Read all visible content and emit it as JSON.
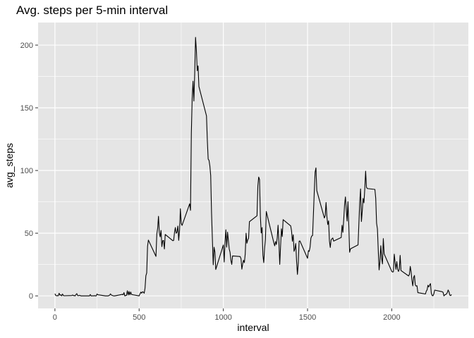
{
  "chart_data": {
    "type": "line",
    "title": "Avg. steps per 5-min interval",
    "xlabel": "interval",
    "ylabel": "avg_steps",
    "xlim": [
      -100,
      2455
    ],
    "ylim": [
      -10,
      218
    ],
    "x_ticks": [
      0,
      500,
      1000,
      1500,
      2000
    ],
    "y_ticks": [
      0,
      50,
      100,
      150,
      200
    ],
    "grid": true,
    "colors": {
      "panel": "#e5e5e5",
      "grid_major": "#ffffff",
      "line": "#000000"
    },
    "series": [
      {
        "name": "avg_steps",
        "points": [
          [
            0,
            1.7
          ],
          [
            5,
            0.3
          ],
          [
            10,
            0.1
          ],
          [
            15,
            0.2
          ],
          [
            20,
            0.1
          ],
          [
            25,
            2.1
          ],
          [
            30,
            0.5
          ],
          [
            35,
            0.9
          ],
          [
            40,
            0
          ],
          [
            45,
            1.5
          ],
          [
            50,
            0.3
          ],
          [
            55,
            0.1
          ],
          [
            100,
            0.3
          ],
          [
            105,
            0.7
          ],
          [
            110,
            0.2
          ],
          [
            115,
            0.3
          ],
          [
            120,
            0
          ],
          [
            125,
            1.1
          ],
          [
            130,
            1.8
          ],
          [
            135,
            0.2
          ],
          [
            140,
            0.2
          ],
          [
            145,
            0.4
          ],
          [
            150,
            0.3
          ],
          [
            155,
            0
          ],
          [
            200,
            0
          ],
          [
            205,
            0
          ],
          [
            210,
            1.1
          ],
          [
            215,
            0
          ],
          [
            220,
            0
          ],
          [
            225,
            0.1
          ],
          [
            230,
            0
          ],
          [
            235,
            0.2
          ],
          [
            240,
            0
          ],
          [
            245,
            0
          ],
          [
            250,
            1.5
          ],
          [
            255,
            0.9
          ],
          [
            300,
            0
          ],
          [
            305,
            0
          ],
          [
            310,
            0
          ],
          [
            315,
            0
          ],
          [
            320,
            0.2
          ],
          [
            325,
            0.6
          ],
          [
            330,
            1.6
          ],
          [
            335,
            0.6
          ],
          [
            340,
            0.5
          ],
          [
            345,
            0.1
          ],
          [
            350,
            0
          ],
          [
            355,
            0
          ],
          [
            400,
            1.2
          ],
          [
            405,
            0.9
          ],
          [
            410,
            2.6
          ],
          [
            415,
            0
          ],
          [
            420,
            0.3
          ],
          [
            425,
            0.4
          ],
          [
            430,
            4.1
          ],
          [
            435,
            0.7
          ],
          [
            440,
            3.5
          ],
          [
            445,
            0.8
          ],
          [
            450,
            3.1
          ],
          [
            455,
            1.1
          ],
          [
            500,
            0
          ],
          [
            505,
            1.6
          ],
          [
            510,
            3
          ],
          [
            515,
            2.2
          ],
          [
            520,
            3.3
          ],
          [
            525,
            3
          ],
          [
            530,
            2.1
          ],
          [
            535,
            6.1
          ],
          [
            540,
            16
          ],
          [
            545,
            18.3
          ],
          [
            550,
            39.5
          ],
          [
            555,
            44.5
          ],
          [
            600,
            31.5
          ],
          [
            605,
            49.3
          ],
          [
            610,
            53.8
          ],
          [
            615,
            63.5
          ],
          [
            620,
            50
          ],
          [
            625,
            47.1
          ],
          [
            630,
            52.2
          ],
          [
            635,
            39.3
          ],
          [
            640,
            44
          ],
          [
            645,
            44.2
          ],
          [
            650,
            37.4
          ],
          [
            655,
            49
          ],
          [
            700,
            44
          ],
          [
            705,
            44.2
          ],
          [
            710,
            50.5
          ],
          [
            715,
            54.5
          ],
          [
            720,
            49.9
          ],
          [
            725,
            50.8
          ],
          [
            730,
            55.7
          ],
          [
            735,
            44.3
          ],
          [
            740,
            52.3
          ],
          [
            745,
            69.5
          ],
          [
            750,
            57.8
          ],
          [
            755,
            56.2
          ],
          [
            800,
            73.4
          ],
          [
            805,
            68.2
          ],
          [
            810,
            129.4
          ],
          [
            815,
            157.5
          ],
          [
            820,
            171.2
          ],
          [
            825,
            155.4
          ],
          [
            830,
            177.3
          ],
          [
            835,
            206.2
          ],
          [
            840,
            195.9
          ],
          [
            845,
            179.6
          ],
          [
            850,
            183.4
          ],
          [
            855,
            167
          ],
          [
            900,
            143.5
          ],
          [
            905,
            124
          ],
          [
            910,
            109.1
          ],
          [
            915,
            108.1
          ],
          [
            920,
            103.7
          ],
          [
            925,
            95.97
          ],
          [
            930,
            66.2
          ],
          [
            935,
            45.2
          ],
          [
            940,
            24.8
          ],
          [
            945,
            38.8
          ],
          [
            950,
            34.98
          ],
          [
            955,
            21.06
          ],
          [
            1000,
            40.6
          ],
          [
            1005,
            26.98
          ],
          [
            1010,
            42.4
          ],
          [
            1015,
            52.7
          ],
          [
            1020,
            38.9
          ],
          [
            1025,
            50.8
          ],
          [
            1030,
            44.3
          ],
          [
            1035,
            37.4
          ],
          [
            1040,
            34.7
          ],
          [
            1045,
            28.3
          ],
          [
            1050,
            25.1
          ],
          [
            1055,
            31.9
          ],
          [
            1100,
            31.4
          ],
          [
            1105,
            29.7
          ],
          [
            1110,
            21.3
          ],
          [
            1115,
            25.5
          ],
          [
            1120,
            28.4
          ],
          [
            1125,
            26.5
          ],
          [
            1130,
            33.4
          ],
          [
            1135,
            49.98
          ],
          [
            1140,
            42
          ],
          [
            1145,
            44.6
          ],
          [
            1150,
            46
          ],
          [
            1155,
            59.2
          ],
          [
            1200,
            63.9
          ],
          [
            1205,
            87.7
          ],
          [
            1210,
            94.8
          ],
          [
            1215,
            92.8
          ],
          [
            1220,
            63.4
          ],
          [
            1225,
            50.2
          ],
          [
            1230,
            54.5
          ],
          [
            1235,
            32.4
          ],
          [
            1240,
            26.5
          ],
          [
            1245,
            37.7
          ],
          [
            1250,
            45.1
          ],
          [
            1255,
            67.3
          ],
          [
            1300,
            42.3
          ],
          [
            1305,
            39.9
          ],
          [
            1310,
            43.3
          ],
          [
            1315,
            40.98
          ],
          [
            1320,
            46.2
          ],
          [
            1325,
            56.4
          ],
          [
            1330,
            42.8
          ],
          [
            1335,
            25.1
          ],
          [
            1340,
            39.97
          ],
          [
            1345,
            53.5
          ],
          [
            1350,
            47.3
          ],
          [
            1355,
            60.8
          ],
          [
            1400,
            55.8
          ],
          [
            1405,
            51.96
          ],
          [
            1410,
            43.6
          ],
          [
            1415,
            48.7
          ],
          [
            1420,
            35.5
          ],
          [
            1425,
            37.5
          ],
          [
            1430,
            41.8
          ],
          [
            1435,
            27.5
          ],
          [
            1440,
            17.1
          ],
          [
            1445,
            26.1
          ],
          [
            1450,
            43.6
          ],
          [
            1455,
            43.8
          ],
          [
            1500,
            30
          ],
          [
            1505,
            36.1
          ],
          [
            1510,
            35.5
          ],
          [
            1515,
            38.8
          ],
          [
            1520,
            45.96
          ],
          [
            1525,
            47.8
          ],
          [
            1530,
            48.1
          ],
          [
            1535,
            65.3
          ],
          [
            1540,
            82.9
          ],
          [
            1545,
            98.7
          ],
          [
            1550,
            102.1
          ],
          [
            1555,
            83.96
          ],
          [
            1600,
            62.1
          ],
          [
            1605,
            64.1
          ],
          [
            1610,
            74.5
          ],
          [
            1615,
            63.2
          ],
          [
            1620,
            56.9
          ],
          [
            1625,
            59.8
          ],
          [
            1630,
            43.9
          ],
          [
            1635,
            38.6
          ],
          [
            1640,
            44.7
          ],
          [
            1645,
            45.5
          ],
          [
            1650,
            46.2
          ],
          [
            1655,
            43.7
          ],
          [
            1700,
            46.6
          ],
          [
            1705,
            56.3
          ],
          [
            1710,
            50.7
          ],
          [
            1715,
            61.2
          ],
          [
            1720,
            72.7
          ],
          [
            1725,
            78.9
          ],
          [
            1730,
            68.9
          ],
          [
            1735,
            59.7
          ],
          [
            1740,
            75.1
          ],
          [
            1745,
            56.5
          ],
          [
            1750,
            34.8
          ],
          [
            1755,
            37.5
          ],
          [
            1800,
            40.7
          ],
          [
            1805,
            58
          ],
          [
            1810,
            74.7
          ],
          [
            1815,
            85.3
          ],
          [
            1820,
            59.3
          ],
          [
            1825,
            67.8
          ],
          [
            1830,
            77.7
          ],
          [
            1835,
            74.2
          ],
          [
            1840,
            85.3
          ],
          [
            1845,
            99.5
          ],
          [
            1850,
            86.6
          ],
          [
            1855,
            85.6
          ],
          [
            1900,
            84.9
          ],
          [
            1905,
            77.8
          ],
          [
            1910,
            58
          ],
          [
            1915,
            53.4
          ],
          [
            1920,
            36.3
          ],
          [
            1925,
            20.7
          ],
          [
            1930,
            27.4
          ],
          [
            1935,
            40
          ],
          [
            1940,
            30.2
          ],
          [
            1945,
            25.5
          ],
          [
            1950,
            45.7
          ],
          [
            1955,
            33.5
          ],
          [
            2000,
            19.6
          ],
          [
            2005,
            19
          ],
          [
            2010,
            19.3
          ],
          [
            2015,
            33.3
          ],
          [
            2020,
            26.8
          ],
          [
            2025,
            21.2
          ],
          [
            2030,
            27.3
          ],
          [
            2035,
            21.3
          ],
          [
            2040,
            19.5
          ],
          [
            2045,
            21.3
          ],
          [
            2050,
            32.3
          ],
          [
            2055,
            20.2
          ],
          [
            2100,
            15.9
          ],
          [
            2105,
            17.2
          ],
          [
            2110,
            23.5
          ],
          [
            2115,
            19.2
          ],
          [
            2120,
            12.5
          ],
          [
            2125,
            8
          ],
          [
            2130,
            14.7
          ],
          [
            2135,
            16.3
          ],
          [
            2140,
            8.7
          ],
          [
            2145,
            7.8
          ],
          [
            2150,
            8.1
          ],
          [
            2155,
            2.6
          ],
          [
            2200,
            1.5
          ],
          [
            2205,
            3.7
          ],
          [
            2210,
            4.8
          ],
          [
            2215,
            8.5
          ],
          [
            2220,
            7.1
          ],
          [
            2225,
            8.7
          ],
          [
            2230,
            9.8
          ],
          [
            2235,
            2.2
          ],
          [
            2240,
            0.3
          ],
          [
            2245,
            0.1
          ],
          [
            2250,
            1.6
          ],
          [
            2255,
            4.6
          ],
          [
            2300,
            3.3
          ],
          [
            2305,
            2.8
          ],
          [
            2310,
            0
          ],
          [
            2315,
            0.8
          ],
          [
            2320,
            1
          ],
          [
            2325,
            1.6
          ],
          [
            2330,
            2.6
          ],
          [
            2335,
            4.7
          ],
          [
            2340,
            3.3
          ],
          [
            2345,
            0.6
          ],
          [
            2350,
            0.2
          ],
          [
            2355,
            1.1
          ]
        ]
      }
    ]
  }
}
